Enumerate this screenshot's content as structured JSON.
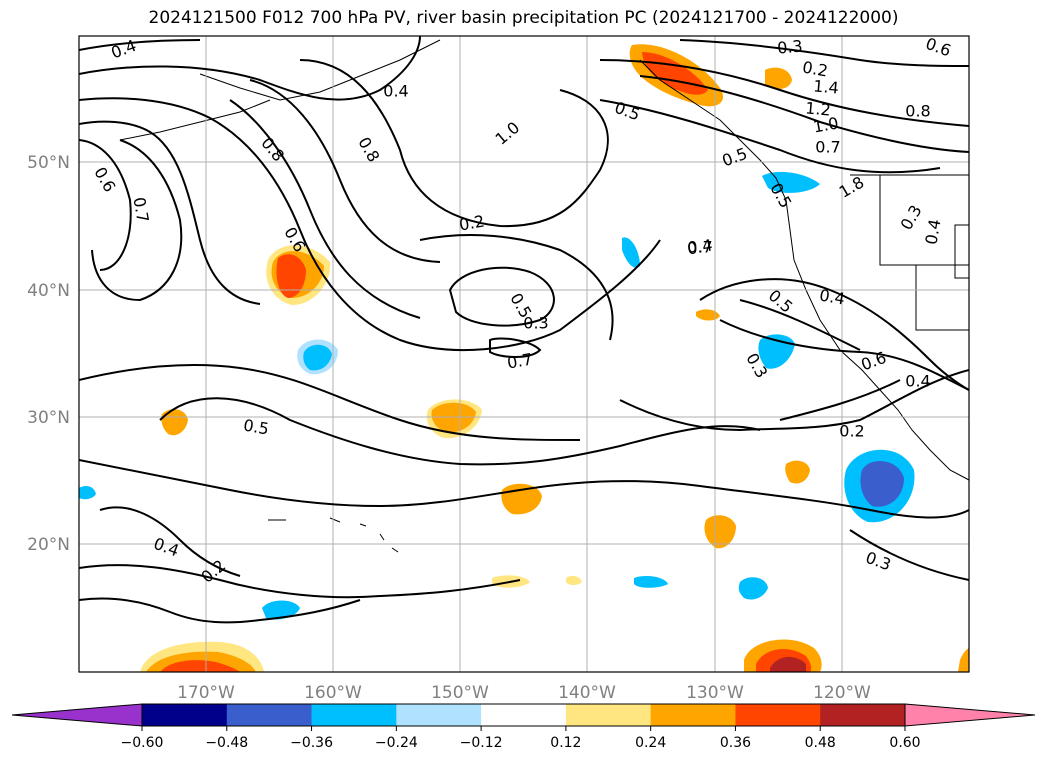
{
  "title": "2024121500 F012 700 hPa PV, river basin precipitation PC (2024121700 - 2024122000)",
  "map": {
    "lon_labels": [
      "170°W",
      "160°W",
      "150°W",
      "140°W",
      "130°W",
      "120°W"
    ],
    "lat_labels": [
      "50°N",
      "40°N",
      "30°N",
      "20°N"
    ],
    "coastline_color": "#000000",
    "gridline_color": "#b0b0b0"
  },
  "contour_labels": [
    "0.4",
    "0.4",
    "0.5",
    "0.6",
    "0.8",
    "0.7",
    "0.8",
    "0.6",
    "0.2",
    "1.0",
    "0.7",
    "0.5",
    "0.3",
    "0.4",
    "0.5",
    "0.4",
    "0.2",
    "0.3",
    "0.3",
    "0.2",
    "1.4",
    "1.2",
    "1.0",
    "0.8",
    "0.7",
    "0.6",
    "0.5",
    "1.8",
    "0.6",
    "0.5",
    "0.3",
    "0.7",
    "0.4",
    "0.4",
    "0.5",
    "0.2",
    "0.3",
    "0.4"
  ],
  "colorbar": {
    "ticks": [
      "−0.60",
      "−0.48",
      "−0.36",
      "−0.24",
      "−0.12",
      "0.12",
      "0.24",
      "0.36",
      "0.48",
      "0.60"
    ],
    "colors": [
      "#9932cc",
      "#00008b",
      "#3a5fcd",
      "#00bfff",
      "#b0e2ff",
      "#ffffff",
      "#ffe680",
      "#ffa500",
      "#ff4500",
      "#b22222",
      "#ff82ab"
    ]
  }
}
